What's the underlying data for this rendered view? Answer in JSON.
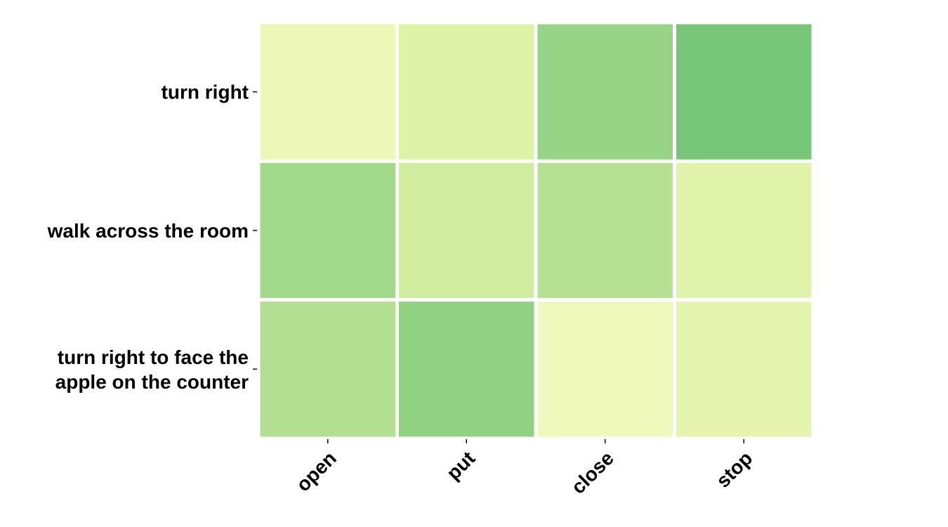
{
  "chart_data": {
    "type": "heatmap",
    "x_categories": [
      "open",
      "put",
      "close",
      "stop"
    ],
    "y_categories": [
      [
        "turn right"
      ],
      [
        "walk across the room"
      ],
      [
        "turn right to face the",
        "apple on the counter"
      ]
    ],
    "values": [
      [
        0.12,
        0.22,
        0.6,
        0.75
      ],
      [
        0.55,
        0.3,
        0.45,
        0.2
      ],
      [
        0.47,
        0.63,
        0.1,
        0.17
      ]
    ],
    "colormap": [
      "#ffffcc",
      "#d9f0a3",
      "#addd8e",
      "#78c679",
      "#31a354"
    ],
    "value_range": [
      0,
      1
    ],
    "title": "",
    "xlabel": "",
    "ylabel": "",
    "legend": "none",
    "grid": false
  }
}
